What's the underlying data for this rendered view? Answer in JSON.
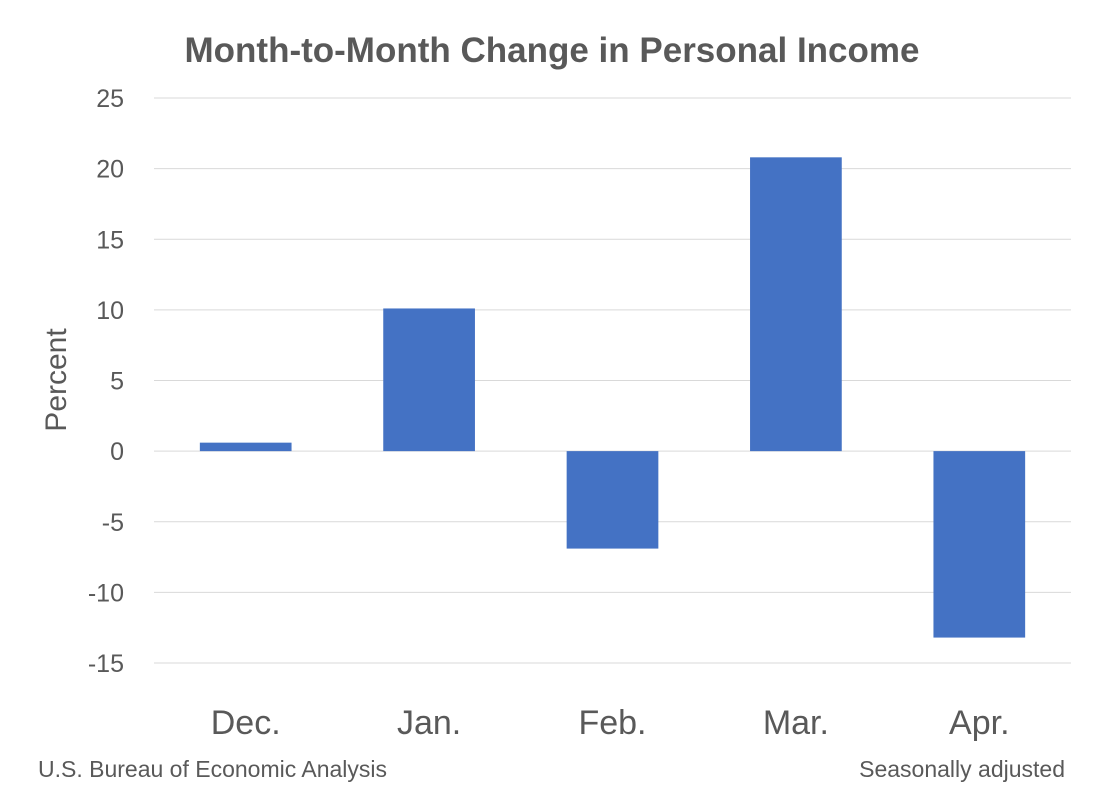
{
  "chart_data": {
    "type": "bar",
    "title": "Month-to-Month Change in Personal Income",
    "xlabel": "",
    "ylabel": "Percent",
    "categories": [
      "Dec.",
      "Jan.",
      "Feb.",
      "Mar.",
      "Apr."
    ],
    "series": [
      {
        "name": "Month-to-Month Change in Personal Income",
        "values": [
          0.6,
          10.1,
          -6.9,
          20.8,
          -13.2
        ]
      }
    ],
    "ylim": [
      -15,
      25
    ],
    "yticks": [
      25,
      20,
      15,
      10,
      5,
      0,
      -5,
      -10,
      -15
    ],
    "ytick_labels": [
      "25",
      "20",
      "15",
      "10",
      "5",
      "0",
      "-5",
      "-10",
      "-15"
    ],
    "grid": true,
    "legend": "none",
    "bar_color": "#4472c4"
  },
  "footer": {
    "source": "U.S. Bureau of Economic Analysis",
    "note": "Seasonally adjusted"
  }
}
